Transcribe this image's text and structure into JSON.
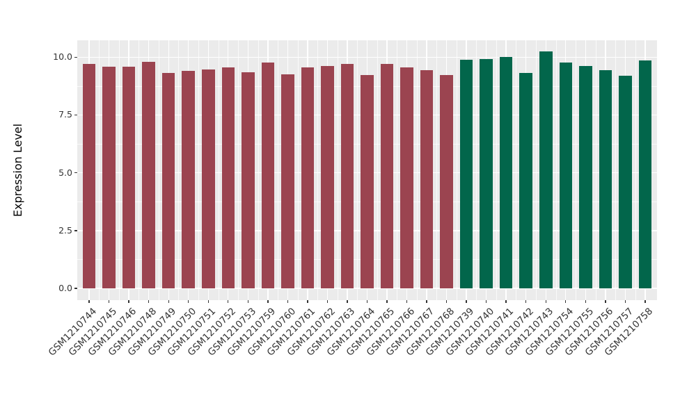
{
  "chart_data": {
    "type": "bar",
    "title": "",
    "xlabel": "",
    "ylabel": "Expression Level",
    "categories": [
      "GSM1210744",
      "GSM1210745",
      "GSM1210746",
      "GSM1210748",
      "GSM1210749",
      "GSM1210750",
      "GSM1210751",
      "GSM1210752",
      "GSM1210753",
      "GSM1210759",
      "GSM1210760",
      "GSM1210761",
      "GSM1210762",
      "GSM1210763",
      "GSM1210764",
      "GSM1210765",
      "GSM1210766",
      "GSM1210767",
      "GSM1210768",
      "GSM1210739",
      "GSM1210740",
      "GSM1210741",
      "GSM1210742",
      "GSM1210743",
      "GSM1210754",
      "GSM1210755",
      "GSM1210756",
      "GSM1210757",
      "GSM1210758"
    ],
    "series": [
      {
        "name": "Expression Level",
        "values": [
          9.71,
          9.58,
          9.59,
          9.8,
          9.31,
          9.42,
          9.46,
          9.57,
          9.35,
          9.78,
          9.26,
          9.55,
          9.62,
          9.7,
          9.23,
          9.7,
          9.56,
          9.43,
          9.24,
          9.88,
          9.91,
          10.02,
          9.32,
          10.24,
          9.77,
          9.63,
          9.45,
          9.19,
          9.87
        ]
      }
    ],
    "bar_color_index": [
      0,
      0,
      0,
      0,
      0,
      0,
      0,
      0,
      0,
      0,
      0,
      0,
      0,
      0,
      0,
      0,
      0,
      0,
      0,
      1,
      1,
      1,
      1,
      1,
      1,
      1,
      1,
      1,
      1
    ],
    "palette": [
      "#9B4450",
      "#02664B"
    ],
    "ylim": [
      -0.51,
      10.73
    ],
    "yticks": [
      0,
      2.5,
      5,
      7.5,
      10
    ],
    "ytick_labels": [
      "0.0",
      "2.5",
      "5.0",
      "7.5",
      "10.0"
    ],
    "yminor": [
      1.25,
      3.75,
      6.25,
      8.75
    ],
    "bar_rel_width": 0.65,
    "x_edge_expand": 0.6,
    "grid": "major+minor",
    "legend": "none",
    "colors": {
      "panel_bg": "#EBEBEB",
      "grid": "#FFFFFF",
      "grid_minor": "rgba(255,255,255,0.75)",
      "axis_text": "#333333",
      "axis_title": "#000000",
      "tick_mark": "#333333"
    }
  }
}
